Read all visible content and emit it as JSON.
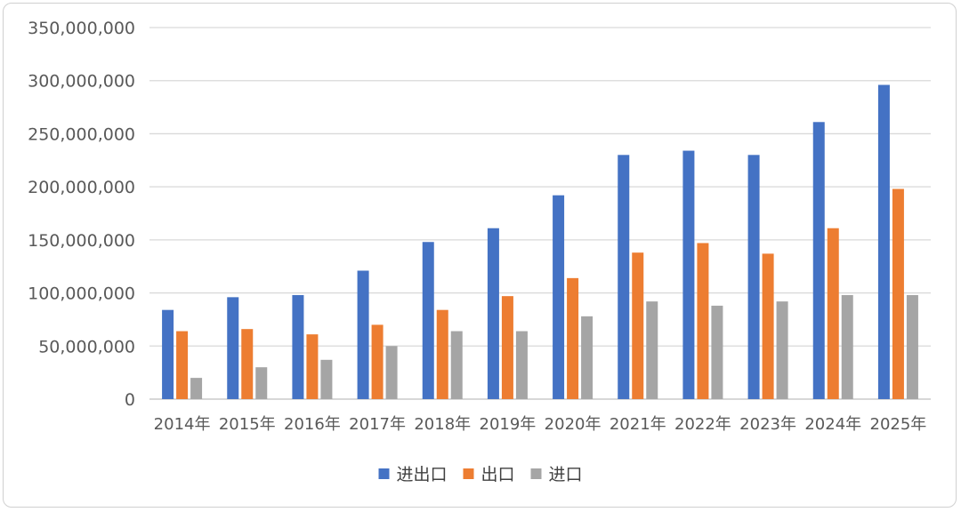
{
  "chart_data": {
    "type": "bar",
    "title": "",
    "xlabel": "",
    "ylabel": "",
    "categories": [
      "2014年",
      "2015年",
      "2016年",
      "2017年",
      "2018年",
      "2019年",
      "2020年",
      "2021年",
      "2022年",
      "2023年",
      "2024年",
      "2025年"
    ],
    "ylim": [
      0,
      350000000
    ],
    "y_ticks": [
      0,
      50000000,
      100000000,
      150000000,
      200000000,
      250000000,
      300000000,
      350000000
    ],
    "y_tick_labels": [
      "0",
      "50,000,000",
      "100,000,000",
      "150,000,000",
      "200,000,000",
      "250,000,000",
      "300,000,000",
      "350,000,000"
    ],
    "grid": true,
    "legend_position": "bottom",
    "series": [
      {
        "name": "进出口",
        "color": "#4472c4",
        "values": [
          84000000,
          96000000,
          98000000,
          121000000,
          148000000,
          161000000,
          192000000,
          230000000,
          234000000,
          230000000,
          261000000,
          296000000
        ]
      },
      {
        "name": "出口",
        "color": "#ed7d31",
        "values": [
          64000000,
          66000000,
          61000000,
          70000000,
          84000000,
          97000000,
          114000000,
          138000000,
          147000000,
          137000000,
          161000000,
          198000000
        ]
      },
      {
        "name": "进口",
        "color": "#a5a5a5",
        "values": [
          20000000,
          30000000,
          37000000,
          50000000,
          64000000,
          64000000,
          78000000,
          92000000,
          88000000,
          92000000,
          98000000,
          98000000
        ]
      }
    ]
  }
}
